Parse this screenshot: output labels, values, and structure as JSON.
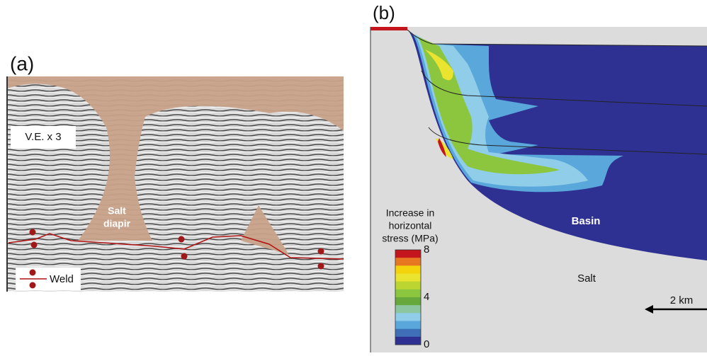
{
  "panel_a": {
    "label": "(a)",
    "ve_label": "V.E. x 3",
    "diapir_label": [
      "Salt",
      "diapir"
    ],
    "weld_label": "Weld"
  },
  "panel_b": {
    "label": "(b)",
    "legend_title": [
      "Increase in",
      "horizontal",
      "stress (MPa)"
    ],
    "legend_ticks": [
      "8",
      "4",
      "0"
    ],
    "colorbar": [
      "#c4151c",
      "#e87722",
      "#f4d20c",
      "#eae330",
      "#bcd531",
      "#8cc63f",
      "#67a83d",
      "#8cc6a0",
      "#8fcde8",
      "#5aa7dc",
      "#3f6fb6",
      "#2e3192"
    ],
    "basin_label": "Basin",
    "salt_label": "Salt",
    "scale_label": "2 km"
  }
}
